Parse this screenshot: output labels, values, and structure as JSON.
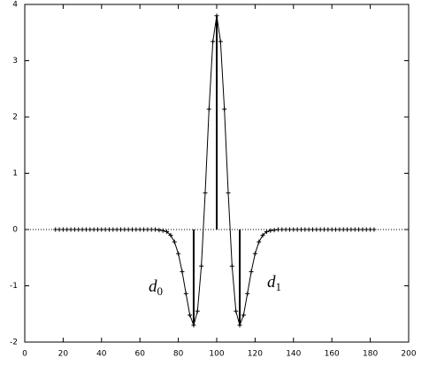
{
  "chart_data": {
    "type": "line",
    "x": [
      16,
      18,
      20,
      22,
      24,
      26,
      28,
      30,
      32,
      34,
      36,
      38,
      40,
      42,
      44,
      46,
      48,
      50,
      52,
      54,
      56,
      58,
      60,
      62,
      64,
      66,
      68,
      70,
      72,
      74,
      76,
      78,
      80,
      82,
      84,
      86,
      88,
      90,
      92,
      94,
      96,
      98,
      100,
      102,
      104,
      106,
      108,
      110,
      112,
      114,
      116,
      118,
      120,
      122,
      124,
      126,
      128,
      130,
      132,
      134,
      136,
      138,
      140,
      142,
      144,
      146,
      148,
      150,
      152,
      154,
      156,
      158,
      160,
      162,
      164,
      166,
      168,
      170,
      172,
      174,
      176,
      178,
      180,
      182
    ],
    "series": [
      {
        "color": "#000000",
        "marker": "+",
        "values": [
          0,
          0,
          0,
          0,
          0,
          0,
          0,
          0,
          0,
          0,
          0,
          0,
          0,
          0,
          0,
          0,
          0,
          0,
          0,
          0,
          0,
          0,
          0,
          0,
          0,
          0,
          0,
          -0.01,
          -0.02,
          -0.04,
          -0.1,
          -0.22,
          -0.43,
          -0.75,
          -1.14,
          -1.52,
          -1.7,
          -1.45,
          -0.65,
          0.65,
          2.14,
          3.34,
          3.8,
          3.34,
          2.14,
          0.65,
          -0.65,
          -1.45,
          -1.7,
          -1.52,
          -1.14,
          -0.75,
          -0.43,
          -0.22,
          -0.1,
          -0.04,
          -0.02,
          -0.01,
          0,
          0,
          0,
          0,
          0,
          0,
          0,
          0,
          0,
          0,
          0,
          0,
          0,
          0,
          0,
          0,
          0,
          0,
          0,
          0,
          0,
          0,
          0,
          0,
          0,
          0
        ]
      }
    ],
    "stems": {
      "x": [
        88,
        100,
        112
      ],
      "values": [
        -1.7,
        3.8,
        -1.7
      ]
    },
    "annotations": [
      {
        "label": "d",
        "subscript": "0"
      },
      {
        "label": "d",
        "subscript": "1"
      }
    ],
    "zero_line": true,
    "xlim": [
      0,
      200
    ],
    "xticks": [
      0,
      20,
      40,
      60,
      80,
      100,
      120,
      140,
      160,
      180,
      200
    ],
    "ylim": [
      -2,
      4
    ],
    "yticks": [
      -2,
      -1,
      0,
      1,
      2,
      3,
      4
    ]
  }
}
